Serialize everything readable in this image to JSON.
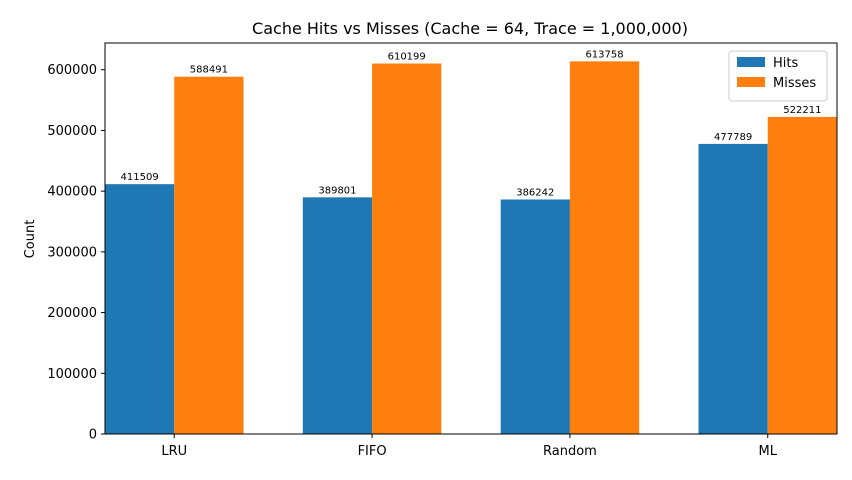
{
  "chart_data": {
    "type": "bar",
    "title": "Cache Hits vs Misses  (Cache = 64, Trace = 1,000,000)",
    "xlabel": "",
    "ylabel": "Count",
    "categories": [
      "LRU",
      "FIFO",
      "Random",
      "ML"
    ],
    "series": [
      {
        "name": "Hits",
        "color": "#1f77b4",
        "values": [
          411509,
          389801,
          386242,
          477789
        ]
      },
      {
        "name": "Misses",
        "color": "#ff7f0e",
        "values": [
          588491,
          610199,
          613758,
          522211
        ]
      }
    ],
    "ylim": [
      0,
      644000
    ],
    "yticks": [
      0,
      100000,
      200000,
      300000,
      400000,
      500000,
      600000
    ],
    "ytick_labels": [
      "0",
      "100000",
      "200000",
      "300000",
      "400000",
      "500000",
      "600000"
    ],
    "data_labels": true,
    "grid": false,
    "legend_position": "top-right"
  }
}
